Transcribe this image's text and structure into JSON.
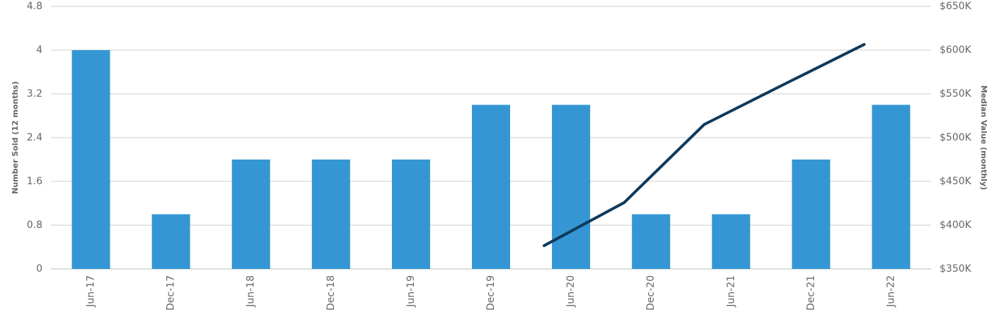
{
  "chart_data": {
    "type": "bar",
    "categories": [
      "Jun-17",
      "Dec-17",
      "Jun-18",
      "Dec-18",
      "Jun-19",
      "Dec-19",
      "Jun-20",
      "Dec-20",
      "Jun-21",
      "Dec-21",
      "Jun-22"
    ],
    "y_label": "Number Sold (12 months)",
    "y2_label": "Median Value (monthly)",
    "ylim": [
      0,
      4.8
    ],
    "yticks": [
      0,
      0.8,
      1.6,
      2.4,
      3.2,
      4,
      4.8
    ],
    "y2lim": [
      350000,
      650000
    ],
    "y2ticks": [
      {
        "value": 350000,
        "label": "$350K"
      },
      {
        "value": 400000,
        "label": "$400K"
      },
      {
        "value": 450000,
        "label": "$450K"
      },
      {
        "value": 500000,
        "label": "$500K"
      },
      {
        "value": 550000,
        "label": "$550K"
      },
      {
        "value": 600000,
        "label": "$600K"
      },
      {
        "value": 650000,
        "label": "$650K"
      }
    ],
    "grid": true,
    "series": [
      {
        "type": "bar",
        "color": "#3596d4",
        "values": [
          4,
          1,
          2,
          2,
          2,
          3,
          3,
          1,
          1,
          2,
          3
        ]
      },
      {
        "type": "line",
        "axis": "y2",
        "color": "#0d3a5c",
        "values": [
          null,
          null,
          null,
          null,
          null,
          null,
          376600,
          425800,
          515000,
          561000,
          606500
        ]
      }
    ]
  }
}
